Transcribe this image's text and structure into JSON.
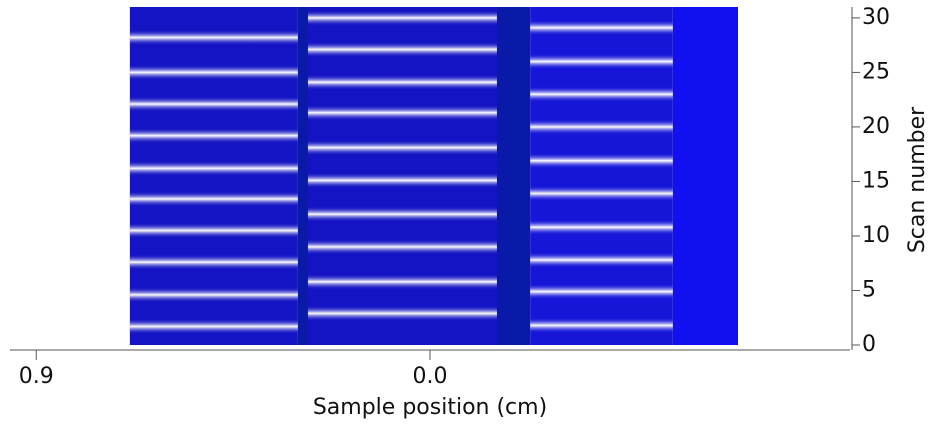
{
  "chart_data": {
    "type": "stripes",
    "x_label": "Sample position (cm)",
    "y_label": "Scan number",
    "xlim": [
      0.96,
      -0.96
    ],
    "ylim": [
      0,
      31
    ],
    "xticks": [
      0.9,
      {
        "value": 0,
        "label": "0.0"
      }
    ],
    "yticks": [
      0,
      5,
      10,
      15,
      20,
      25,
      30
    ],
    "stripe_color": "#ffffff",
    "background_bands": [
      {
        "x": [
          0.302,
          -0.229
        ],
        "color": "#0a1aa8"
      },
      {
        "x": [
          -0.555,
          -0.704
        ],
        "color": "#1010f0"
      }
    ],
    "bands": [
      {
        "x": [
          0.686,
          0.302
        ],
        "color": "#1414c4",
        "stripes": [
          1.7,
          4.6,
          7.6,
          10.5,
          13.4,
          16.2,
          19.2,
          22.1,
          25,
          28.2
        ]
      },
      {
        "x": [
          0.279,
          -0.153
        ],
        "color": "#1414c4",
        "stripes": [
          2.9,
          5.8,
          9,
          12,
          15.1,
          18.1,
          21.3,
          24.1,
          27.1,
          30
        ]
      },
      {
        "x": [
          -0.229,
          -0.555
        ],
        "color": "#1616d8",
        "stripes": [
          1.8,
          4.9,
          7.8,
          10.8,
          13.9,
          16.9,
          20,
          23,
          26,
          29.1
        ]
      }
    ]
  }
}
